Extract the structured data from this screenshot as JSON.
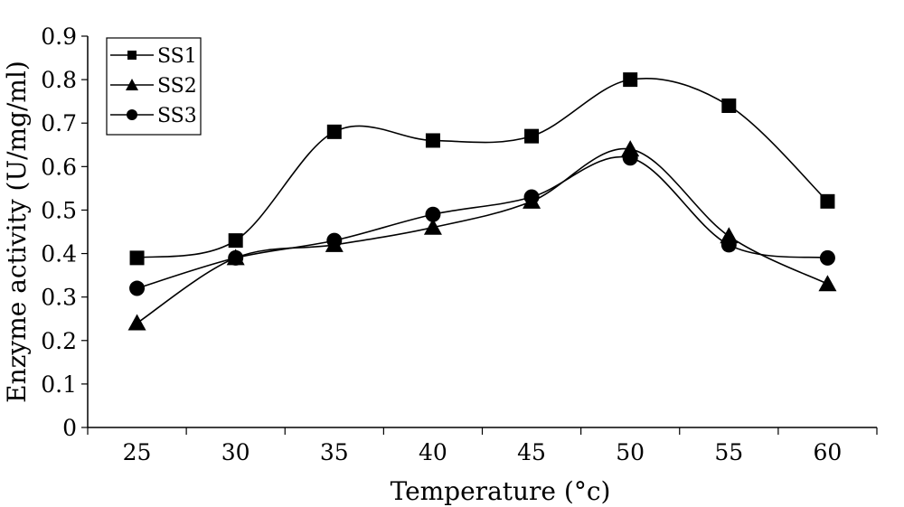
{
  "chart_data": {
    "type": "line",
    "x": [
      25,
      30,
      35,
      40,
      45,
      50,
      55,
      60
    ],
    "series": [
      {
        "name": "SS1",
        "marker": "square",
        "values": [
          0.39,
          0.43,
          0.68,
          0.66,
          0.67,
          0.8,
          0.74,
          0.52
        ]
      },
      {
        "name": "SS2",
        "marker": "triangle",
        "values": [
          0.24,
          0.39,
          0.42,
          0.46,
          0.52,
          0.64,
          0.44,
          0.33
        ]
      },
      {
        "name": "SS3",
        "marker": "circle",
        "values": [
          0.32,
          0.39,
          0.43,
          0.49,
          0.53,
          0.62,
          0.42,
          0.39
        ]
      }
    ],
    "xlabel": "Temperature (°c)",
    "ylabel": "Enzyme activity (U/mg/ml)",
    "x_tick_labels": [
      "25",
      "30",
      "35",
      "40",
      "45",
      "50",
      "55",
      "60"
    ],
    "y_tick_labels": [
      "0",
      "0.1",
      "0.2",
      "0.3",
      "0.4",
      "0.5",
      "0.6",
      "0.7",
      "0.8",
      "0.9"
    ],
    "ylim": [
      0,
      0.9
    ],
    "grid": false,
    "legend_position": "top-left",
    "line_color": "#000000"
  }
}
